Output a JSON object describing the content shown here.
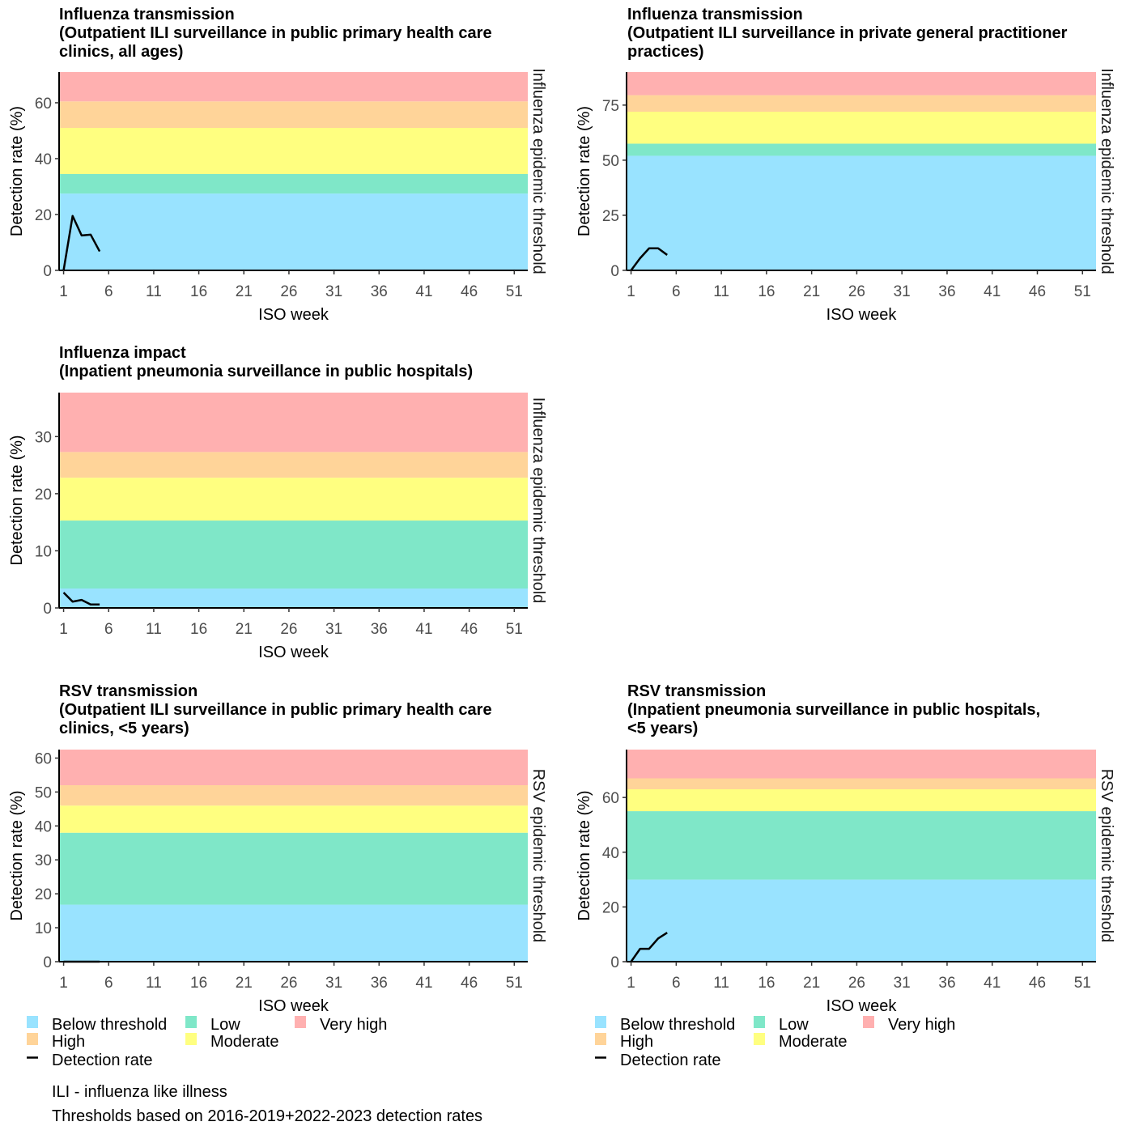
{
  "colors": {
    "below_threshold": "#99E3FF",
    "low": "#7FE7C8",
    "moderate": "#FFFF80",
    "high": "#FFD499",
    "very_high": "#FFB0B0",
    "line": "#000000",
    "axis_text": "#4D4D4D"
  },
  "legend_items": [
    {
      "label": "Below threshold",
      "color": "#99E3FF",
      "kind": "fill"
    },
    {
      "label": "Low",
      "color": "#7FE7C8",
      "kind": "fill"
    },
    {
      "label": "Very high",
      "color": "#FFB0B0",
      "kind": "fill"
    },
    {
      "label": "High",
      "color": "#FFD499",
      "kind": "fill"
    },
    {
      "label": "Moderate",
      "color": "#FFFF80",
      "kind": "fill"
    },
    {
      "label": "Detection rate",
      "color": "#000000",
      "kind": "line"
    }
  ],
  "notes": [
    "ILI - influenza like illness",
    "Thresholds based on 2016-2019+2022-2023 detection rates"
  ],
  "chart_data": [
    {
      "type": "line",
      "title": "Influenza transmission\n(Outpatient ILI surveillance in public primary health care\nclinics, all ages)",
      "xlabel": "ISO week",
      "ylabel": "Detection rate (%)",
      "strip_label": "Influenza epidemic threshold",
      "xlim": [
        0.5,
        52.5
      ],
      "ylim": [
        0,
        71
      ],
      "x_ticks": [
        1,
        6,
        11,
        16,
        21,
        26,
        31,
        36,
        41,
        46,
        51
      ],
      "y_ticks": [
        0,
        20,
        40,
        60
      ],
      "bands": [
        {
          "level": "Below threshold",
          "from": 0,
          "to": 27.5
        },
        {
          "level": "Low",
          "from": 27.5,
          "to": 34.5
        },
        {
          "level": "Moderate",
          "from": 34.5,
          "to": 51
        },
        {
          "level": "High",
          "from": 51,
          "to": 60.5
        },
        {
          "level": "Very high",
          "from": 60.5,
          "to": 71
        }
      ],
      "series": [
        {
          "name": "Detection rate",
          "x": [
            1,
            2,
            3,
            4,
            5
          ],
          "y": [
            0,
            19.5,
            12.5,
            12.8,
            6.8
          ]
        }
      ]
    },
    {
      "type": "line",
      "title": "Influenza transmission\n(Outpatient ILI surveillance in private general practitioner\npractices)",
      "xlabel": "ISO week",
      "ylabel": "Detection rate (%)",
      "strip_label": "Influenza epidemic threshold",
      "xlim": [
        0.5,
        52.5
      ],
      "ylim": [
        0,
        90
      ],
      "x_ticks": [
        1,
        6,
        11,
        16,
        21,
        26,
        31,
        36,
        41,
        46,
        51
      ],
      "y_ticks": [
        0,
        25,
        50,
        75
      ],
      "bands": [
        {
          "level": "Below threshold",
          "from": 0,
          "to": 52
        },
        {
          "level": "Low",
          "from": 52,
          "to": 57.5
        },
        {
          "level": "Moderate",
          "from": 57.5,
          "to": 72
        },
        {
          "level": "High",
          "from": 72,
          "to": 79.5
        },
        {
          "level": "Very high",
          "from": 79.5,
          "to": 90
        }
      ],
      "series": [
        {
          "name": "Detection rate",
          "x": [
            1,
            2,
            3,
            4,
            5
          ],
          "y": [
            0,
            5.5,
            10,
            10,
            7
          ]
        }
      ]
    },
    {
      "type": "line",
      "title": "Influenza impact\n(Inpatient pneumonia surveillance in public hospitals)",
      "xlabel": "ISO week",
      "ylabel": "Detection rate (%)",
      "strip_label": "Influenza epidemic threshold",
      "xlim": [
        0.5,
        52.5
      ],
      "ylim": [
        0,
        37.7
      ],
      "x_ticks": [
        1,
        6,
        11,
        16,
        21,
        26,
        31,
        36,
        41,
        46,
        51
      ],
      "y_ticks": [
        0,
        10,
        20,
        30
      ],
      "bands": [
        {
          "level": "Below threshold",
          "from": 0,
          "to": 3.4
        },
        {
          "level": "Low",
          "from": 3.4,
          "to": 15.3
        },
        {
          "level": "Moderate",
          "from": 15.3,
          "to": 22.8
        },
        {
          "level": "High",
          "from": 22.8,
          "to": 27.3
        },
        {
          "level": "Very high",
          "from": 27.3,
          "to": 37.7
        }
      ],
      "series": [
        {
          "name": "Detection rate",
          "x": [
            1,
            2,
            3,
            4,
            5
          ],
          "y": [
            2.7,
            1.1,
            1.4,
            0.6,
            0.6
          ]
        }
      ]
    },
    {
      "type": "line",
      "title": "RSV transmission\n(Outpatient ILI surveillance in public primary health care\nclinics, <5 years)",
      "xlabel": "ISO week",
      "ylabel": "Detection rate (%)",
      "strip_label": "RSV epidemic threshold",
      "xlim": [
        0.5,
        52.5
      ],
      "ylim": [
        0,
        62.5
      ],
      "x_ticks": [
        1,
        6,
        11,
        16,
        21,
        26,
        31,
        36,
        41,
        46,
        51
      ],
      "y_ticks": [
        0,
        10,
        20,
        30,
        40,
        50,
        60
      ],
      "bands": [
        {
          "level": "Below threshold",
          "from": 0,
          "to": 16.8
        },
        {
          "level": "Low",
          "from": 16.8,
          "to": 38
        },
        {
          "level": "Moderate",
          "from": 38,
          "to": 46
        },
        {
          "level": "High",
          "from": 46,
          "to": 52
        },
        {
          "level": "Very high",
          "from": 52,
          "to": 62.5
        }
      ],
      "series": [
        {
          "name": "Detection rate",
          "x": [
            1,
            2,
            3,
            4,
            5
          ],
          "y": [
            0,
            0,
            0,
            0,
            0
          ]
        }
      ]
    },
    {
      "type": "line",
      "title": "RSV transmission\n(Inpatient pneumonia surveillance in public hospitals,\n<5 years)",
      "xlabel": "ISO week",
      "ylabel": "Detection rate (%)",
      "strip_label": "RSV epidemic threshold",
      "xlim": [
        0.5,
        52.5
      ],
      "ylim": [
        0,
        77.5
      ],
      "x_ticks": [
        1,
        6,
        11,
        16,
        21,
        26,
        31,
        36,
        41,
        46,
        51
      ],
      "y_ticks": [
        0,
        20,
        40,
        60
      ],
      "bands": [
        {
          "level": "Below threshold",
          "from": 0,
          "to": 30
        },
        {
          "level": "Low",
          "from": 30,
          "to": 55
        },
        {
          "level": "Moderate",
          "from": 55,
          "to": 63
        },
        {
          "level": "High",
          "from": 63,
          "to": 67
        },
        {
          "level": "Very high",
          "from": 67,
          "to": 77.5
        }
      ],
      "series": [
        {
          "name": "Detection rate",
          "x": [
            1,
            2,
            3,
            4,
            5
          ],
          "y": [
            0,
            4.7,
            4.7,
            8.5,
            10.6
          ]
        }
      ]
    }
  ]
}
